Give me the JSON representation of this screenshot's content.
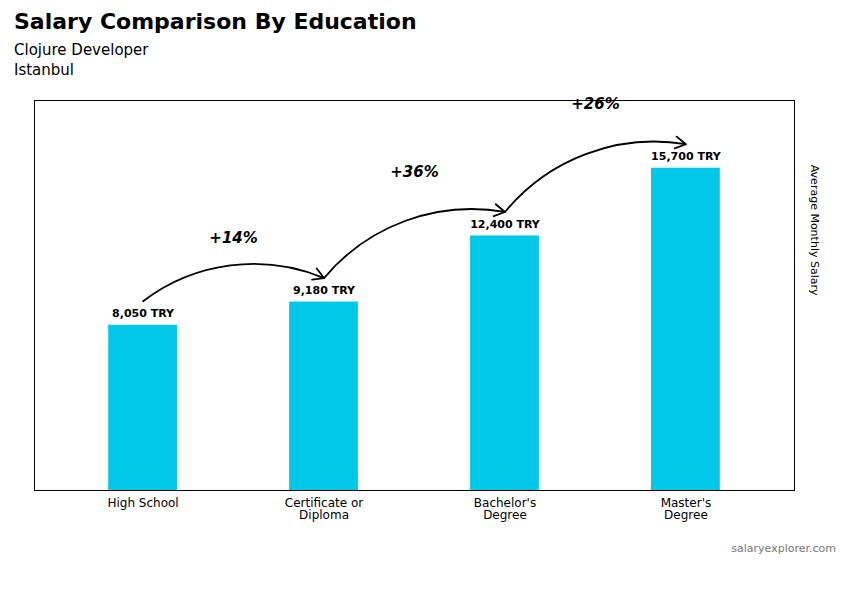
{
  "chart_data": {
    "type": "bar",
    "title": "Salary Comparison By Education",
    "subtitle": [
      "Clojure Developer",
      "Istanbul"
    ],
    "caption": "salaryexplorer.com",
    "ylabel": "Average Monthly Salary",
    "categories": [
      "High School",
      "Certificate or\nDiploma",
      "Bachelor's\nDegree",
      "Master's\nDegree"
    ],
    "values": [
      8050,
      9180,
      12400,
      15700
    ],
    "value_labels": [
      "8,050 TRY",
      "9,180 TRY",
      "12,400 TRY",
      "15,700 TRY"
    ],
    "data_labels": true,
    "annotations": [
      "+14%",
      "+36%",
      "+26%"
    ],
    "color": "#00c8e8",
    "ylim": [
      0,
      19000
    ],
    "tick_labels": "x",
    "grid": false
  }
}
